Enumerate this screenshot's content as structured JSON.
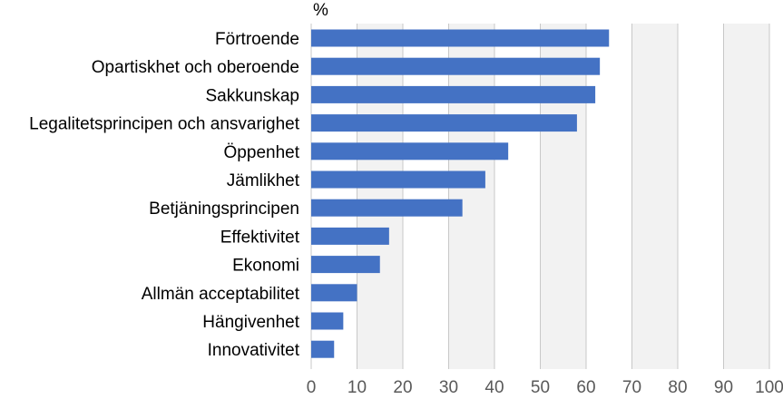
{
  "chart_data": {
    "type": "bar",
    "orientation": "horizontal",
    "unit_label": "%",
    "title": "",
    "xlabel": "",
    "ylabel": "",
    "categories": [
      "Förtroende",
      "Opartiskhet och oberoende",
      "Sakkunskap",
      "Legalitetsprincipen och ansvarighet",
      "Öppenhet",
      "Jämlikhet",
      "Betjäningsprincipen",
      "Effektivitet",
      "Ekonomi",
      "Allmän acceptabilitet",
      "Hängivenhet",
      "Innovativitet"
    ],
    "values": [
      65,
      63,
      62,
      58,
      43,
      38,
      33,
      17,
      15,
      10,
      7,
      5
    ],
    "xlim": [
      0,
      100
    ],
    "xticks": [
      0,
      10,
      20,
      30,
      40,
      50,
      60,
      70,
      80,
      90,
      100
    ],
    "grid": "vertical",
    "legend": "none",
    "colors": {
      "bar": "#4472C4",
      "band": "#F2F2F2",
      "grid": "#C8C8C8",
      "axis_text": "#595959"
    }
  }
}
